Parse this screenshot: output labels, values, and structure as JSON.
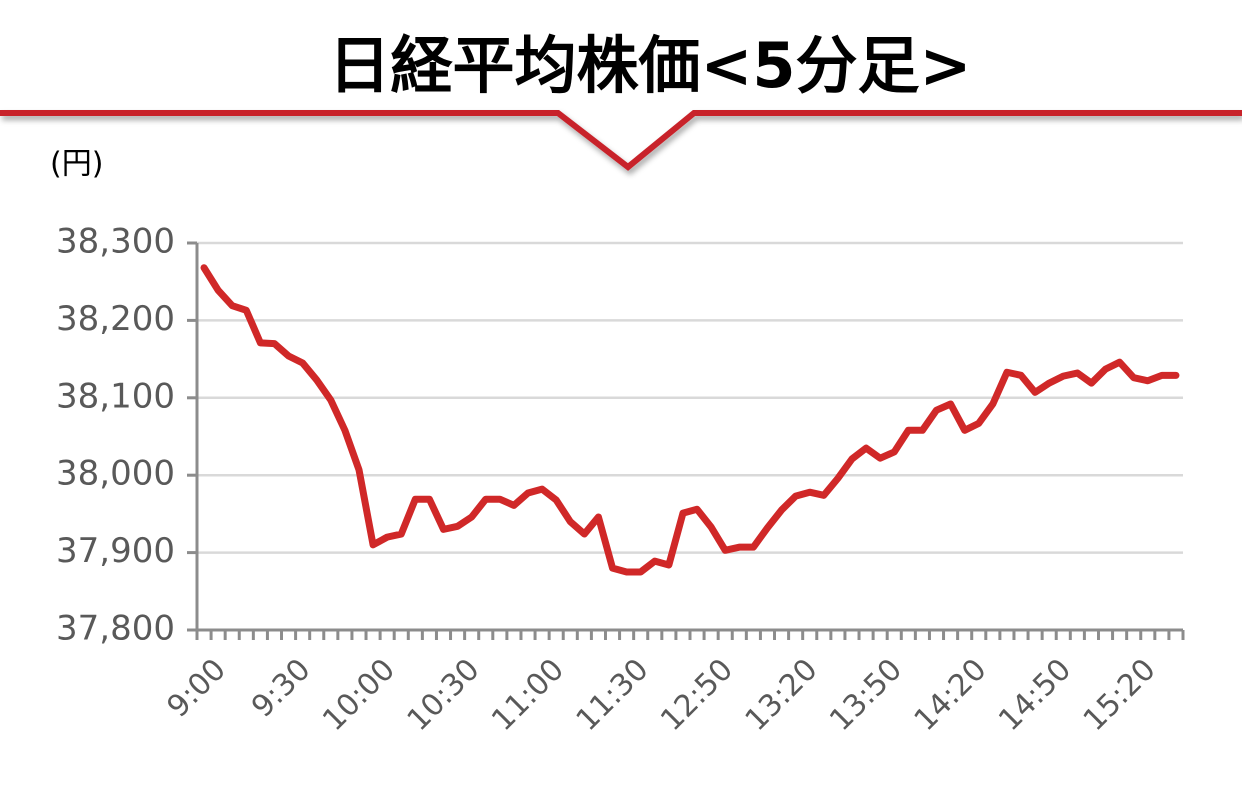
{
  "chart_data": {
    "type": "line",
    "title": "日経平均株価<5分足>",
    "y_unit": "(円)",
    "categories": [
      "9:00",
      null,
      null,
      null,
      null,
      null,
      "9:30",
      null,
      null,
      null,
      null,
      null,
      "10:00",
      null,
      null,
      null,
      null,
      null,
      "10:30",
      null,
      null,
      null,
      null,
      null,
      "11:00",
      null,
      null,
      null,
      null,
      null,
      "11:30",
      null,
      null,
      null,
      null,
      null,
      "12:50",
      null,
      null,
      null,
      null,
      null,
      "13:20",
      null,
      null,
      null,
      null,
      null,
      "13:50",
      null,
      null,
      null,
      null,
      null,
      "14:20",
      null,
      null,
      null,
      null,
      null,
      "14:50",
      null,
      null,
      null,
      null,
      null,
      "15:20",
      null,
      null,
      null
    ],
    "values": [
      38268,
      38239,
      38219,
      38213,
      38171,
      38170,
      38154,
      38145,
      38123,
      38097,
      38058,
      38007,
      37910,
      37920,
      37924,
      37969,
      37969,
      37930,
      37934,
      37946,
      37969,
      37969,
      37961,
      37977,
      37982,
      37968,
      37940,
      37924,
      37946,
      37880,
      37875,
      37875,
      37889,
      37884,
      37951,
      37956,
      37933,
      37903,
      37907,
      37907,
      37932,
      37955,
      37973,
      37978,
      37974,
      37996,
      38021,
      38035,
      38022,
      38030,
      38058,
      38058,
      38084,
      38092,
      38058,
      38067,
      38092,
      38133,
      38129,
      38107,
      38119,
      38128,
      38132,
      38119,
      38137,
      38146,
      38126,
      38122,
      38129,
      38129
    ],
    "color": "#d02828",
    "ylim": [
      37800,
      38300
    ],
    "yticks": [
      {
        "value": 37800,
        "label": "37,800"
      },
      {
        "value": 37900,
        "label": "37,900"
      },
      {
        "value": 38000,
        "label": "38,000"
      },
      {
        "value": 38100,
        "label": "38,100"
      },
      {
        "value": 38200,
        "label": "38,200"
      },
      {
        "value": 38300,
        "label": "38,300"
      }
    ],
    "grid": true
  }
}
